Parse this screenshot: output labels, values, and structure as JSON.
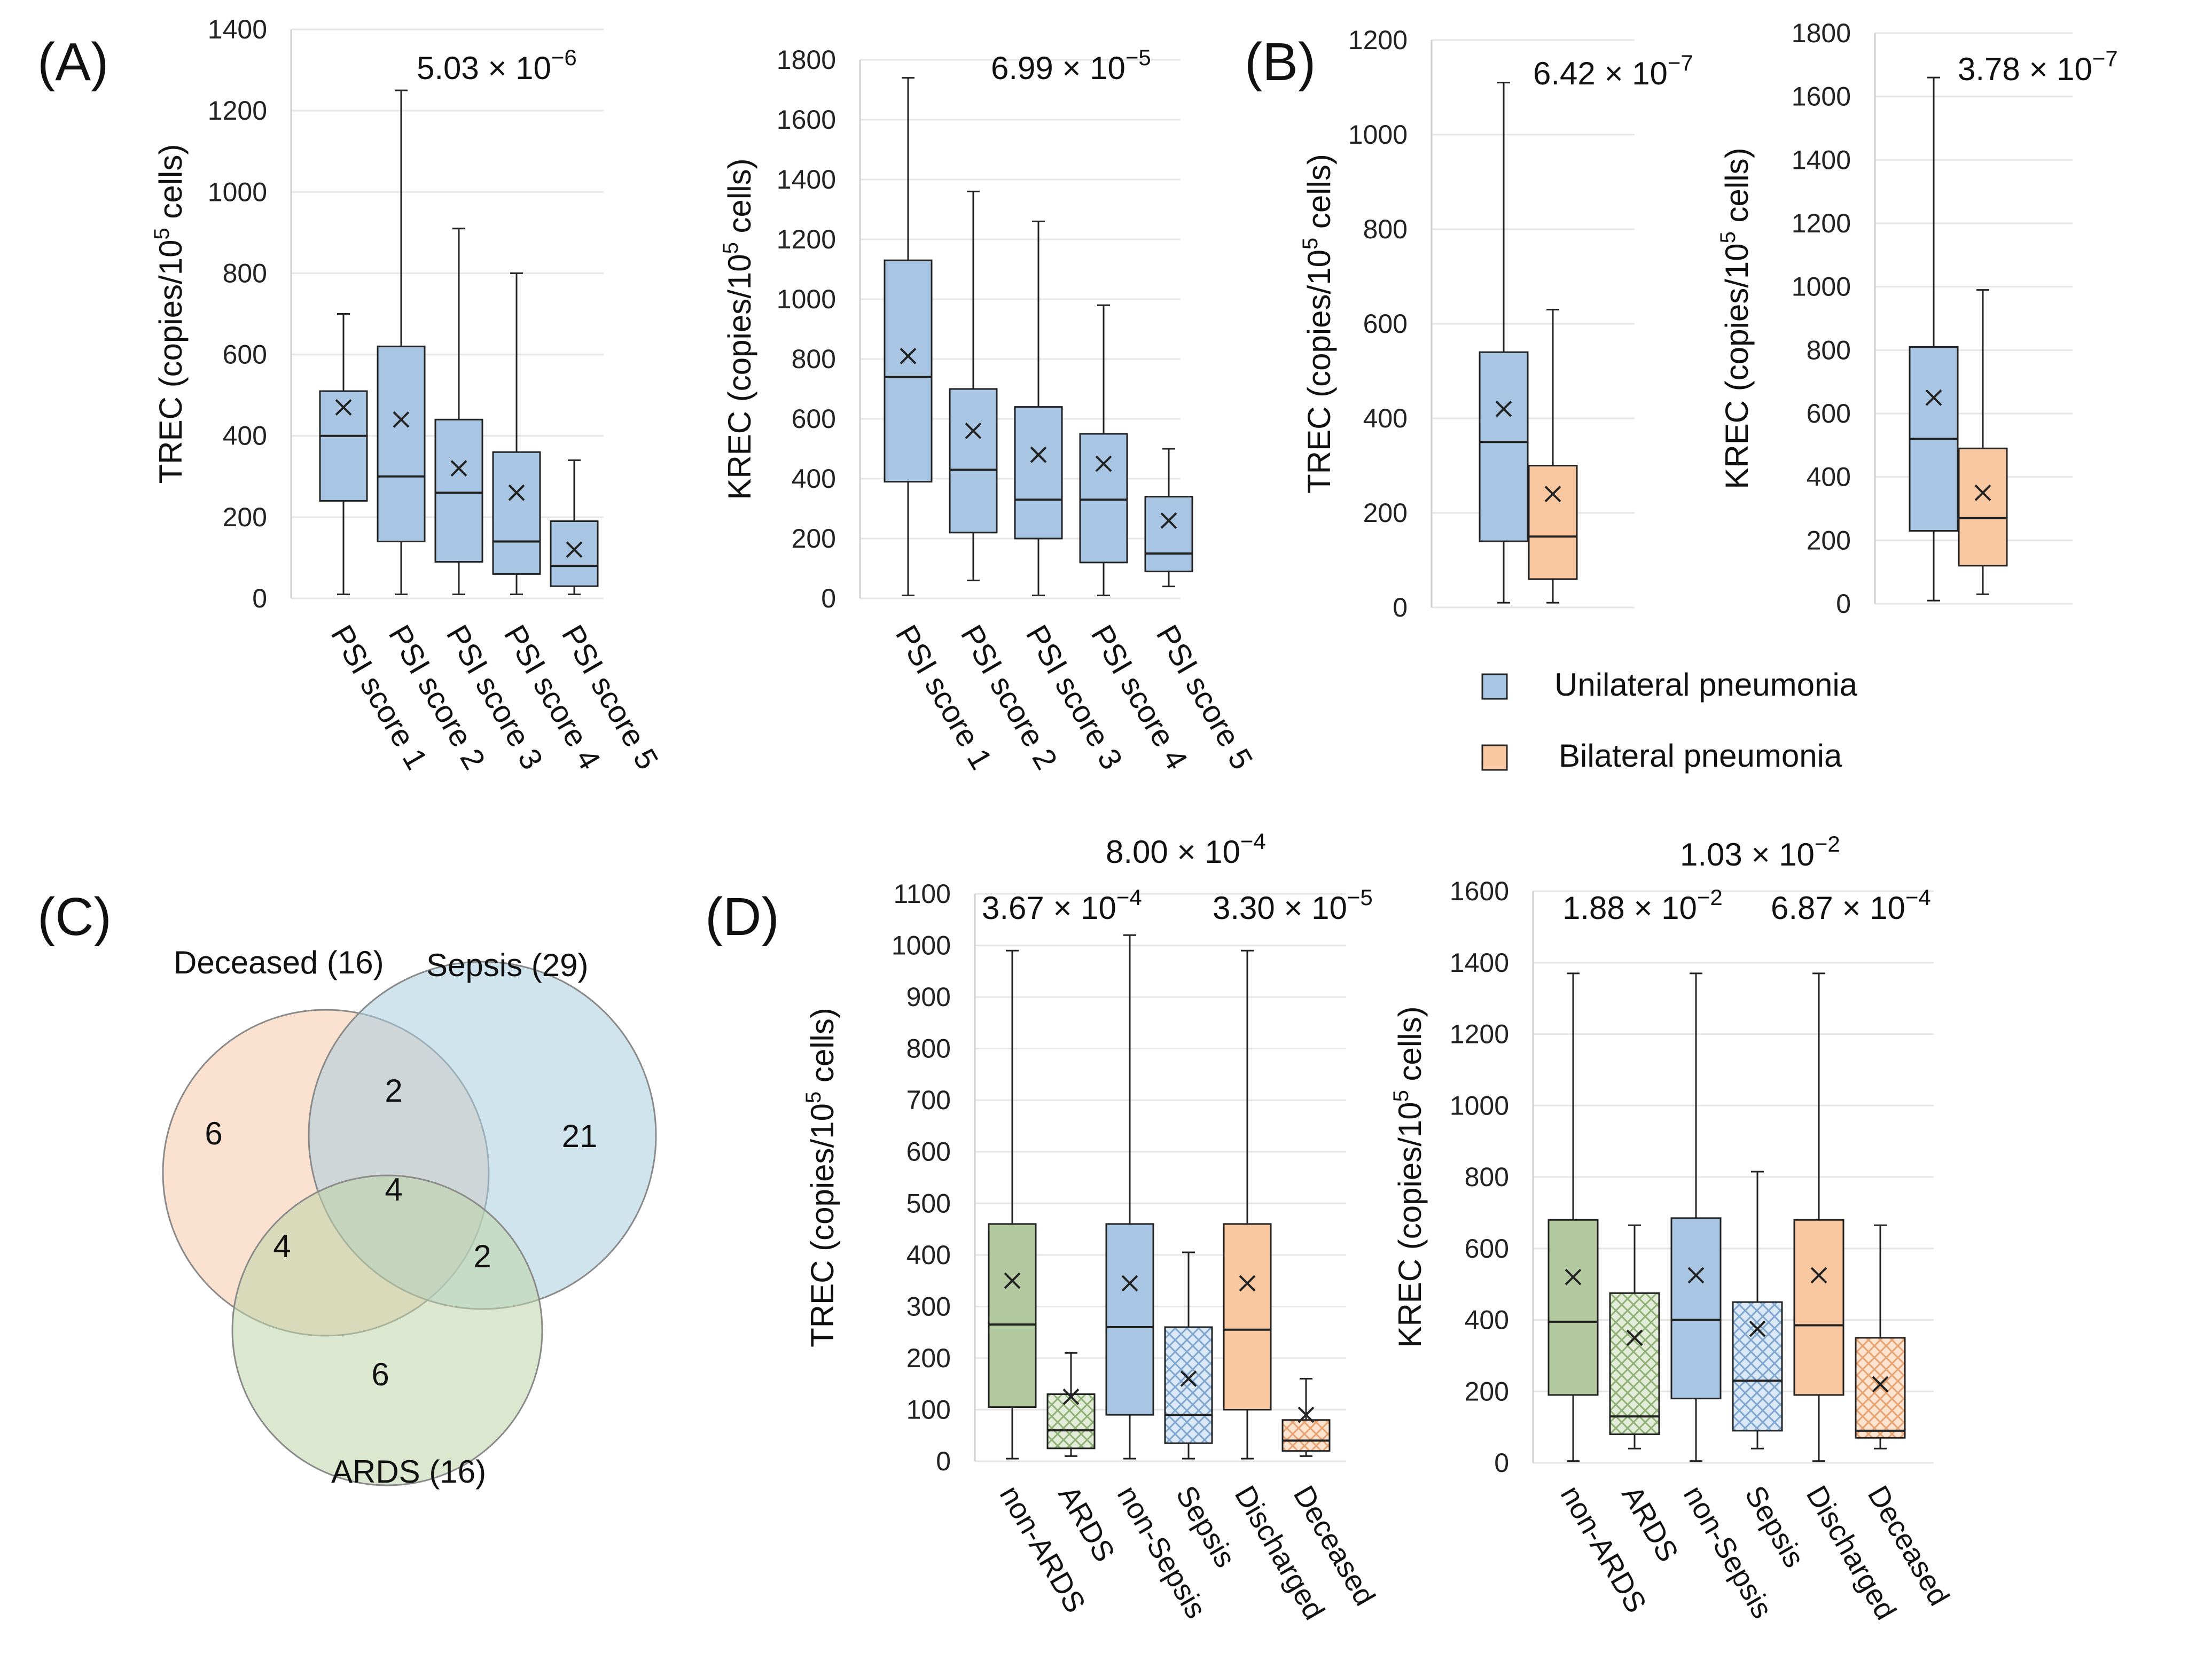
{
  "colors": {
    "blue": "#a8c6e4",
    "orange": "#f9c8a0",
    "green": "#b3c9a0",
    "venn_orange": "#f7c9a7",
    "venn_blue": "#a9cde0",
    "venn_green": "#bed6a8",
    "stroke": "#222222"
  },
  "panels": {
    "A": "(A)",
    "B": "(B)",
    "C": "(C)",
    "D": "(D)"
  },
  "legend": {
    "unilateral": "Unilateral pneumonia",
    "bilateral": "Bilateral pneumonia"
  },
  "venn": {
    "deceased_label": "Deceased (16)",
    "sepsis_label": "Sepsis (29)",
    "ards_label": "ARDS (16)",
    "regions": {
      "deceased_only": "6",
      "sepsis_only": "21",
      "ards_only": "6",
      "deceased_sepsis": "2",
      "deceased_ards": "4",
      "sepsis_ards": "2",
      "all": "4"
    }
  },
  "chart_data": [
    {
      "id": "A-TREC",
      "type": "box",
      "ylabel": "TREC (copies/10^5 cells)",
      "ylim": [
        0,
        1400
      ],
      "yticks": [
        0,
        200,
        400,
        600,
        800,
        1000,
        1200,
        1400
      ],
      "categories": [
        "PSI score 1",
        "PSI score 2",
        "PSI score 3",
        "PSI score 4",
        "PSI score 5"
      ],
      "pvalues": [
        {
          "mantissa": "5.03 × 10",
          "exponent": "−6"
        }
      ],
      "boxes": [
        {
          "min": 10,
          "q1": 240,
          "median": 400,
          "q3": 510,
          "max": 700,
          "mean": 470,
          "color": "blue"
        },
        {
          "min": 10,
          "q1": 140,
          "median": 300,
          "q3": 620,
          "max": 1250,
          "mean": 440,
          "color": "blue"
        },
        {
          "min": 10,
          "q1": 90,
          "median": 260,
          "q3": 440,
          "max": 910,
          "mean": 320,
          "color": "blue"
        },
        {
          "min": 10,
          "q1": 60,
          "median": 140,
          "q3": 360,
          "max": 800,
          "mean": 260,
          "color": "blue"
        },
        {
          "min": 10,
          "q1": 30,
          "median": 80,
          "q3": 190,
          "max": 340,
          "mean": 120,
          "color": "blue"
        }
      ]
    },
    {
      "id": "A-KREC",
      "type": "box",
      "ylabel": "KREC (copies/10^5 cells)",
      "ylim": [
        0,
        1800
      ],
      "yticks": [
        0,
        200,
        400,
        600,
        800,
        1000,
        1200,
        1400,
        1600,
        1800
      ],
      "categories": [
        "PSI score 1",
        "PSI score 2",
        "PSI score 3",
        "PSI score 4",
        "PSI score 5"
      ],
      "pvalues": [
        {
          "mantissa": "6.99 × 10",
          "exponent": "−5"
        }
      ],
      "boxes": [
        {
          "min": 10,
          "q1": 390,
          "median": 740,
          "q3": 1130,
          "max": 1740,
          "mean": 810,
          "color": "blue"
        },
        {
          "min": 60,
          "q1": 220,
          "median": 430,
          "q3": 700,
          "max": 1360,
          "mean": 560,
          "color": "blue"
        },
        {
          "min": 10,
          "q1": 200,
          "median": 330,
          "q3": 640,
          "max": 1260,
          "mean": 480,
          "color": "blue"
        },
        {
          "min": 10,
          "q1": 120,
          "median": 330,
          "q3": 550,
          "max": 980,
          "mean": 450,
          "color": "blue"
        },
        {
          "min": 40,
          "q1": 90,
          "median": 150,
          "q3": 340,
          "max": 500,
          "mean": 260,
          "color": "blue"
        }
      ]
    },
    {
      "id": "B-TREC",
      "type": "box",
      "ylabel": "TREC (copies/10^5 cells)",
      "ylim": [
        0,
        1200
      ],
      "yticks": [
        0,
        200,
        400,
        600,
        800,
        1000,
        1200
      ],
      "categories": [
        "Unilateral pneumonia",
        "Bilateral pneumonia"
      ],
      "pvalues": [
        {
          "mantissa": "6.42 × 10",
          "exponent": "−7"
        }
      ],
      "boxes": [
        {
          "min": 10,
          "q1": 140,
          "median": 350,
          "q3": 540,
          "max": 1110,
          "mean": 420,
          "color": "blue"
        },
        {
          "min": 10,
          "q1": 60,
          "median": 150,
          "q3": 300,
          "max": 630,
          "mean": 240,
          "color": "orange"
        }
      ]
    },
    {
      "id": "B-KREC",
      "type": "box",
      "ylabel": "KREC (copies/10^5 cells)",
      "ylim": [
        0,
        1800
      ],
      "yticks": [
        0,
        200,
        400,
        600,
        800,
        1000,
        1200,
        1400,
        1600,
        1800
      ],
      "categories": [
        "Unilateral pneumonia",
        "Bilateral pneumonia"
      ],
      "pvalues": [
        {
          "mantissa": "3.78 × 10",
          "exponent": "−7"
        }
      ],
      "boxes": [
        {
          "min": 10,
          "q1": 230,
          "median": 520,
          "q3": 810,
          "max": 1660,
          "mean": 650,
          "color": "blue"
        },
        {
          "min": 30,
          "q1": 120,
          "median": 270,
          "q3": 490,
          "max": 990,
          "mean": 350,
          "color": "orange"
        }
      ]
    },
    {
      "id": "D-TREC",
      "type": "box",
      "ylabel": "TREC (copies/10^5 cells)",
      "ylim": [
        0,
        1100
      ],
      "yticks": [
        0,
        100,
        200,
        300,
        400,
        500,
        600,
        700,
        800,
        900,
        1000,
        1100
      ],
      "categories": [
        "non-ARDS",
        "ARDS",
        "non-Sepsis",
        "Sepsis",
        "Discharged",
        "Deceased"
      ],
      "pvalues": [
        {
          "mantissa": "3.67 × 10",
          "exponent": "−4"
        },
        {
          "mantissa": "8.00 × 10",
          "exponent": "−4"
        },
        {
          "mantissa": "3.30 × 10",
          "exponent": "−5"
        }
      ],
      "boxes": [
        {
          "min": 5,
          "q1": 105,
          "median": 265,
          "q3": 460,
          "max": 990,
          "mean": 350,
          "color": "green",
          "hatch": false
        },
        {
          "min": 10,
          "q1": 25,
          "median": 60,
          "q3": 130,
          "max": 210,
          "mean": 125,
          "color": "green",
          "hatch": true
        },
        {
          "min": 5,
          "q1": 90,
          "median": 260,
          "q3": 460,
          "max": 1020,
          "mean": 345,
          "color": "blue",
          "hatch": false
        },
        {
          "min": 5,
          "q1": 35,
          "median": 90,
          "q3": 260,
          "max": 405,
          "mean": 160,
          "color": "blue",
          "hatch": true
        },
        {
          "min": 5,
          "q1": 100,
          "median": 255,
          "q3": 460,
          "max": 990,
          "mean": 345,
          "color": "orange",
          "hatch": false
        },
        {
          "min": 10,
          "q1": 20,
          "median": 40,
          "q3": 80,
          "max": 160,
          "mean": 90,
          "color": "orange",
          "hatch": true
        }
      ]
    },
    {
      "id": "D-KREC",
      "type": "box",
      "ylabel": "KREC (copies/10^5 cells)",
      "ylim": [
        0,
        1600
      ],
      "yticks": [
        0,
        200,
        400,
        600,
        800,
        1000,
        1200,
        1400,
        1600
      ],
      "categories": [
        "non-ARDS",
        "ARDS",
        "non-Sepsis",
        "Sepsis",
        "Discharged",
        "Deceased"
      ],
      "pvalues": [
        {
          "mantissa": "1.88 × 10",
          "exponent": "−2"
        },
        {
          "mantissa": "1.03 × 10",
          "exponent": "−2"
        },
        {
          "mantissa": "6.87 × 10",
          "exponent": "−4"
        }
      ],
      "boxes": [
        {
          "min": 5,
          "q1": 190,
          "median": 395,
          "q3": 680,
          "max": 1370,
          "mean": 520,
          "color": "green",
          "hatch": false
        },
        {
          "min": 40,
          "q1": 80,
          "median": 130,
          "q3": 475,
          "max": 665,
          "mean": 350,
          "color": "green",
          "hatch": true
        },
        {
          "min": 5,
          "q1": 180,
          "median": 400,
          "q3": 685,
          "max": 1370,
          "mean": 525,
          "color": "blue",
          "hatch": false
        },
        {
          "min": 40,
          "q1": 90,
          "median": 230,
          "q3": 450,
          "max": 815,
          "mean": 375,
          "color": "blue",
          "hatch": true
        },
        {
          "min": 5,
          "q1": 190,
          "median": 385,
          "q3": 680,
          "max": 1370,
          "mean": 525,
          "color": "orange",
          "hatch": false
        },
        {
          "min": 40,
          "q1": 70,
          "median": 90,
          "q3": 350,
          "max": 665,
          "mean": 220,
          "color": "orange",
          "hatch": true
        }
      ]
    }
  ]
}
